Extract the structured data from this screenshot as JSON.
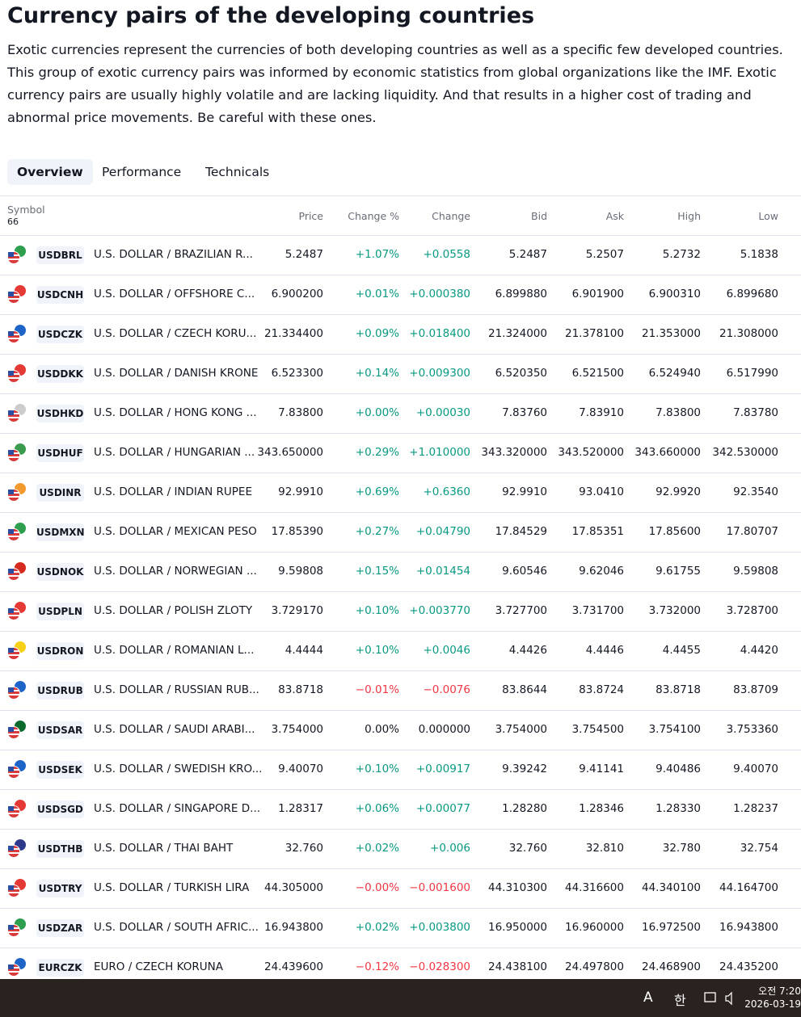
{
  "header": {
    "title": "Currency pairs of the developing countries",
    "description": "Exotic currencies represent the currencies of both developing countries as well as a specific few developed countries. This group of exotic currency pairs was informed by economic statistics from global organizations like the IMF. Exotic currency pairs are usually highly volatile and are lacking liquidity. And that results in a higher cost of trading and abnormal price movements. Be careful with these ones."
  },
  "tabs": [
    "Overview",
    "Performance",
    "Technicals"
  ],
  "table": {
    "symbol_header": "Symbol",
    "symbol_count": "66",
    "columns": [
      "Price",
      "Change %",
      "Change",
      "Bid",
      "Ask",
      "High",
      "Low"
    ],
    "rows": [
      [
        "USDBRL",
        "U.S. DOLLAR / BRAZILIAN R...",
        "5.2487",
        "+1.07%",
        "+0.0558",
        "5.2487",
        "5.2507",
        "5.2732",
        "5.1838"
      ],
      [
        "USDCNH",
        "U.S. DOLLAR / OFFSHORE C...",
        "6.900200",
        "+0.01%",
        "+0.000380",
        "6.899880",
        "6.901900",
        "6.900310",
        "6.899680"
      ],
      [
        "USDCZK",
        "U.S. DOLLAR / CZECH KORU...",
        "21.334400",
        "+0.09%",
        "+0.018400",
        "21.324000",
        "21.378100",
        "21.353000",
        "21.308000"
      ],
      [
        "USDDKK",
        "U.S. DOLLAR / DANISH KRONE",
        "6.523300",
        "+0.14%",
        "+0.009300",
        "6.520350",
        "6.521500",
        "6.524940",
        "6.517990"
      ],
      [
        "USDHKD",
        "U.S. DOLLAR / HONG KONG ...",
        "7.83800",
        "+0.00%",
        "+0.00030",
        "7.83760",
        "7.83910",
        "7.83800",
        "7.83780"
      ],
      [
        "USDHUF",
        "U.S. DOLLAR / HUNGARIAN ...",
        "343.650000",
        "+0.29%",
        "+1.010000",
        "343.320000",
        "343.520000",
        "343.660000",
        "342.530000"
      ],
      [
        "USDINR",
        "U.S. DOLLAR / INDIAN RUPEE",
        "92.9910",
        "+0.69%",
        "+0.6360",
        "92.9910",
        "93.0410",
        "92.9920",
        "92.3540"
      ],
      [
        "USDMXN",
        "U.S. DOLLAR / MEXICAN PESO",
        "17.85390",
        "+0.27%",
        "+0.04790",
        "17.84529",
        "17.85351",
        "17.85600",
        "17.80707"
      ],
      [
        "USDNOK",
        "U.S. DOLLAR / NORWEGIAN ...",
        "9.59808",
        "+0.15%",
        "+0.01454",
        "9.60546",
        "9.62046",
        "9.61755",
        "9.59808"
      ],
      [
        "USDPLN",
        "U.S. DOLLAR / POLISH ZLOTY",
        "3.729170",
        "+0.10%",
        "+0.003770",
        "3.727700",
        "3.731700",
        "3.732000",
        "3.728700"
      ],
      [
        "USDRON",
        "U.S. DOLLAR / ROMANIAN L...",
        "4.4444",
        "+0.10%",
        "+0.0046",
        "4.4426",
        "4.4446",
        "4.4455",
        "4.4420"
      ],
      [
        "USDRUB",
        "U.S. DOLLAR / RUSSIAN RUB...",
        "83.8718",
        "−0.01%",
        "−0.0076",
        "83.8644",
        "83.8724",
        "83.8718",
        "83.8709"
      ],
      [
        "USDSAR",
        "U.S. DOLLAR / SAUDI ARABI...",
        "3.754000",
        "0.00%",
        "0.000000",
        "3.754000",
        "3.754500",
        "3.754100",
        "3.753360"
      ],
      [
        "USDSEK",
        "U.S. DOLLAR / SWEDISH KRO...",
        "9.40070",
        "+0.10%",
        "+0.00917",
        "9.39242",
        "9.41141",
        "9.40486",
        "9.40070"
      ],
      [
        "USDSGD",
        "U.S. DOLLAR / SINGAPORE D...",
        "1.28317",
        "+0.06%",
        "+0.00077",
        "1.28280",
        "1.28346",
        "1.28330",
        "1.28237"
      ],
      [
        "USDTHB",
        "U.S. DOLLAR / THAI BAHT",
        "32.760",
        "+0.02%",
        "+0.006",
        "32.760",
        "32.810",
        "32.780",
        "32.754"
      ],
      [
        "USDTRY",
        "U.S. DOLLAR / TURKISH LIRA",
        "44.305000",
        "−0.00%",
        "−0.001600",
        "44.310300",
        "44.316600",
        "44.340100",
        "44.164700"
      ],
      [
        "USDZAR",
        "U.S. DOLLAR / SOUTH AFRIC...",
        "16.943800",
        "+0.02%",
        "+0.003800",
        "16.950000",
        "16.960000",
        "16.972500",
        "16.943800"
      ],
      [
        "EURCZK",
        "EURO / CZECH KORUNA",
        "24.439600",
        "−0.12%",
        "−0.028300",
        "24.438100",
        "24.497800",
        "24.468900",
        "24.435200"
      ]
    ]
  },
  "taskbar": {
    "input_mode": "A",
    "language": "한",
    "time": "오전 7:20",
    "date": "2026-03-19"
  }
}
